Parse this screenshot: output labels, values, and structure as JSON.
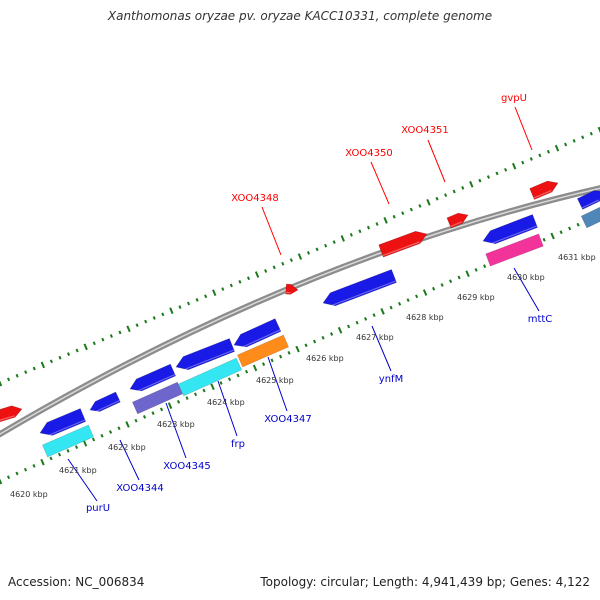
{
  "title": "Xanthomonas oryzae pv. oryzae KACC10331, complete genome",
  "footer": {
    "accession": "Accession: NC_006834",
    "info": "Topology: circular; Length: 4,941,439 bp; Genes: 4,122"
  },
  "colors": {
    "backbone": "#8c8c8c",
    "tick_dots": "#1b7a1b",
    "forward_label": "#ff0000",
    "reverse_label": "#0000cc",
    "cds_blue": "#1a1ae6",
    "cds_red": "#ee1111",
    "cds_cyan": "#33e6f2",
    "cds_slate": "#6e66cc",
    "cds_orange": "#ff8c1a",
    "cds_magenta": "#f23399",
    "cds_steel": "#4f87b8"
  },
  "scale_ticks": [
    {
      "label": "4620 kbp"
    },
    {
      "label": "4621 kbp"
    },
    {
      "label": "4622 kbp"
    },
    {
      "label": "4623 kbp"
    },
    {
      "label": "4624 kbp"
    },
    {
      "label": "4625 kbp"
    },
    {
      "label": "4626 kbp"
    },
    {
      "label": "4627 kbp"
    },
    {
      "label": "4628 kbp"
    },
    {
      "label": "4629 kbp"
    },
    {
      "label": "4630 kbp"
    },
    {
      "label": "4631 kbp"
    }
  ],
  "forward_labels": [
    {
      "text": "XOO4348"
    },
    {
      "text": "XOO4350"
    },
    {
      "text": "XOO4351"
    },
    {
      "text": "gvpU"
    }
  ],
  "reverse_labels": [
    {
      "text": "purU"
    },
    {
      "text": "XOO4344"
    },
    {
      "text": "XOO4345"
    },
    {
      "text": "frp"
    },
    {
      "text": "XOO4347"
    },
    {
      "text": "ynfM"
    },
    {
      "text": "mttC"
    }
  ],
  "forward_genes": [
    {
      "color": "cds_red"
    },
    {
      "color": "cds_red"
    },
    {
      "color": "cds_red"
    },
    {
      "color": "cds_red"
    },
    {
      "color": "cds_red"
    },
    {
      "color": "cds_blue"
    }
  ],
  "reverse_genes": [
    {
      "color": "cds_blue"
    },
    {
      "color": "cds_blue"
    },
    {
      "color": "cds_blue"
    },
    {
      "color": "cds_blue"
    },
    {
      "color": "cds_blue"
    },
    {
      "color": "cds_blue"
    },
    {
      "color": "cds_blue"
    },
    {
      "color": "cds_cyan"
    },
    {
      "color": "cds_slate"
    },
    {
      "color": "cds_cyan"
    },
    {
      "color": "cds_orange"
    },
    {
      "color": "cds_magenta"
    },
    {
      "color": "cds_steel"
    }
  ]
}
